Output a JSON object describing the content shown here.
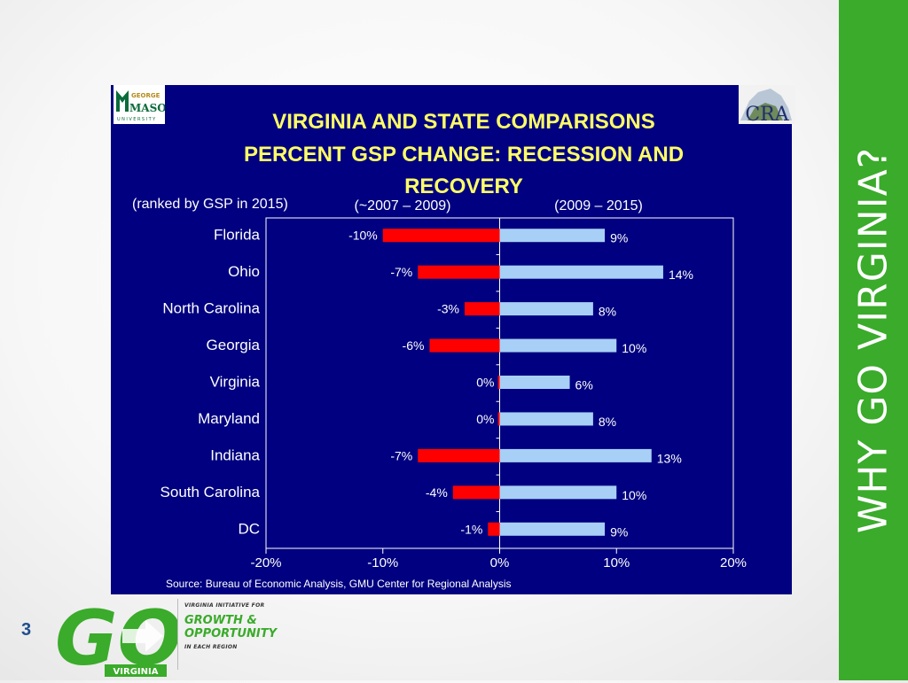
{
  "slide": {
    "page_number": "3",
    "side_title": "WHY GO VIRGINIA?",
    "logos": {
      "gmu_line1": "GEORGE",
      "gmu_line2": "MASON",
      "gmu_line3": "UNIVERSITY",
      "cra": "CRA",
      "go": "GO",
      "go_virginia": "VIRGINIA",
      "tagline_top": "VIRGINIA INITIATIVE FOR",
      "tagline_line1": "GROWTH &",
      "tagline_line2": "OPPORTUNITY",
      "tagline_bottom": "IN EACH REGION"
    },
    "colors": {
      "panel_bg": "#000080",
      "title": "#ffff66",
      "recession_bar": "#ff0000",
      "recovery_bar": "#a8cff5",
      "banner": "#3aab2a"
    }
  },
  "chart_data": {
    "type": "bar",
    "orientation": "horizontal",
    "title_lines": [
      "VIRGINIA AND STATE COMPARISONS",
      "PERCENT GSP CHANGE: RECESSION AND",
      "RECOVERY"
    ],
    "subtitle_left": "(ranked by GSP in 2015)",
    "categories": [
      "Florida",
      "Ohio",
      "North Carolina",
      "Georgia",
      "Virginia",
      "Maryland",
      "Indiana",
      "South Carolina",
      "DC"
    ],
    "series": [
      {
        "name": "(~2007 – 2009)",
        "values": [
          -10,
          -7,
          -3,
          -6,
          0,
          0,
          -7,
          -4,
          -1
        ],
        "labels": [
          "-10%",
          "-7%",
          "-3%",
          "-6%",
          "0%",
          "0%",
          "-7%",
          "-4%",
          "-1%"
        ]
      },
      {
        "name": "(2009 – 2015)",
        "values": [
          9,
          14,
          8,
          10,
          6,
          8,
          13,
          10,
          9
        ],
        "labels": [
          "9%",
          "14%",
          "8%",
          "10%",
          "6%",
          "8%",
          "13%",
          "10%",
          "9%"
        ]
      }
    ],
    "xlim": [
      -20,
      20
    ],
    "x_ticks": [
      -20,
      -10,
      0,
      10,
      20
    ],
    "x_tick_labels": [
      "-20%",
      "-10%",
      "0%",
      "10%",
      "20%"
    ],
    "grid": false,
    "source": "Source: Bureau of Economic Analysis, GMU Center for Regional Analysis"
  }
}
